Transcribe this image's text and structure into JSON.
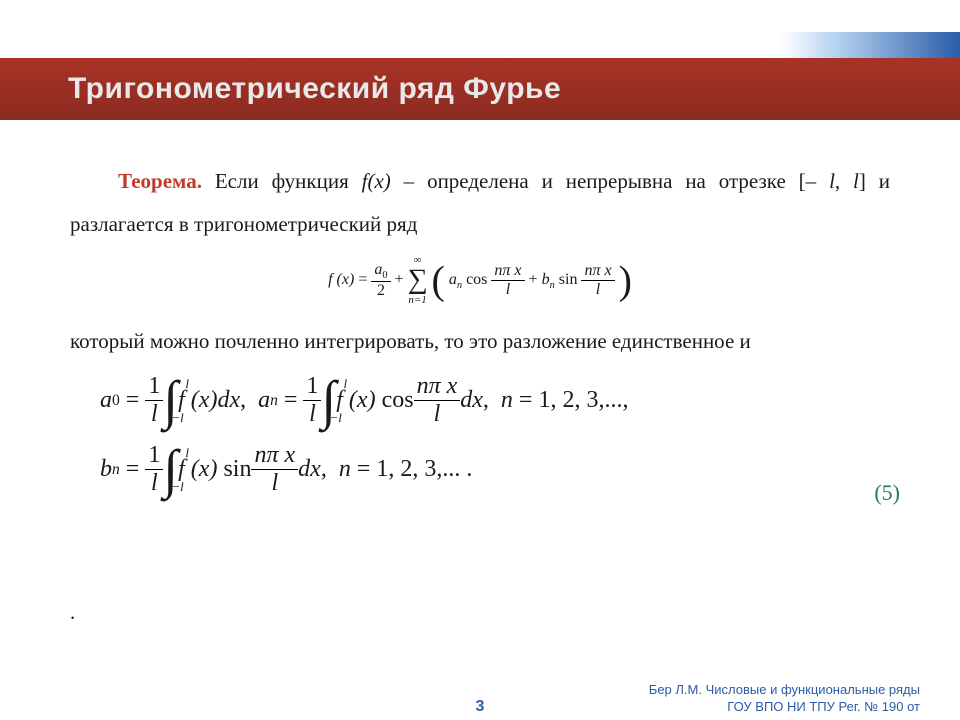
{
  "colors": {
    "title_bg_from": "#a93226",
    "title_bg_to": "#8b2b21",
    "title_text": "#e8e8e8",
    "accent_blue": "#2a5ca8",
    "theorem_red": "#c0392b",
    "eq_green": "#2a7a4a",
    "body_text": "#1a1a1a",
    "background": "#ffffff"
  },
  "header": {
    "title": "Тригонометрический ряд Фурье"
  },
  "body": {
    "theorem_label": "Теорема.",
    "text1a": " Если функция ",
    "fx": "f(x)",
    "text1b": " – определена и непрерывна на отрезке [– ",
    "l1": "l",
    "text1c": ", ",
    "l2": "l",
    "text1d": "] и разлагается в тригонометрический ряд",
    "text2": " который можно почленно интегрировать, то это разложение единственное и",
    "eq_label": "(5)"
  },
  "series": {
    "lhs": "f (x)",
    "a0": "a",
    "zero": "0",
    "two": "2",
    "sum_top": "∞",
    "sum_bot": "n=1",
    "an": "a",
    "n": "n",
    "cos": "cos",
    "sin": "sin",
    "npix": "nπ x",
    "l": "l",
    "bn": "b"
  },
  "coeffs": {
    "a0": "a",
    "zero": "0",
    "one_over_l_n": "1",
    "one_over_l_d": "l",
    "int_top": "l",
    "int_bot": "−l",
    "fx": "f (x)",
    "dx": "dx",
    "an": "a",
    "n": "n",
    "cos": "cos",
    "npix": "nπ x",
    "l": "l",
    "n_eq": "n",
    "n_vals": "1, 2, 3,...,",
    "bn": "b",
    "sin": "sin",
    "n_vals2": "1, 2, 3,... ."
  },
  "footer": {
    "page": "3",
    "line1": "Бер Л.М. Числовые и функциональные ряды",
    "line2": "ГОУ ВПО НИ ТПУ Рег. № 190 от"
  }
}
